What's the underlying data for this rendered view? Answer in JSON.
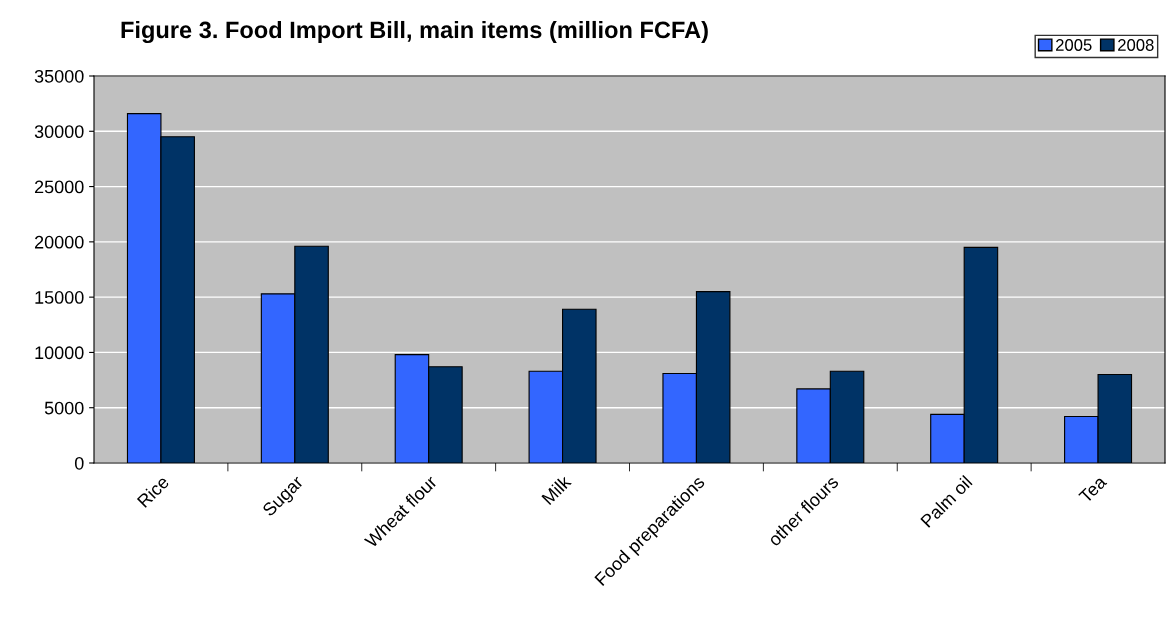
{
  "chart_data": {
    "type": "bar",
    "title": "Figure 3. Food Import Bill, main items (million FCFA)",
    "categories": [
      "Rice",
      "Sugar",
      "Wheat flour",
      "Milk",
      "Food preparations",
      "other flours",
      "Palm oil",
      "Tea"
    ],
    "series": [
      {
        "name": "2005",
        "color": "#3366ff",
        "values": [
          31600,
          15300,
          9800,
          8300,
          8100,
          6700,
          4400,
          4200
        ]
      },
      {
        "name": "2008",
        "color": "#003366",
        "values": [
          29500,
          19600,
          8700,
          13900,
          15500,
          8300,
          19500,
          8000
        ]
      }
    ],
    "ylim": [
      0,
      35000
    ],
    "yticks": [
      0,
      5000,
      10000,
      15000,
      20000,
      25000,
      30000,
      35000
    ],
    "grid": "y",
    "legend": "top right"
  }
}
